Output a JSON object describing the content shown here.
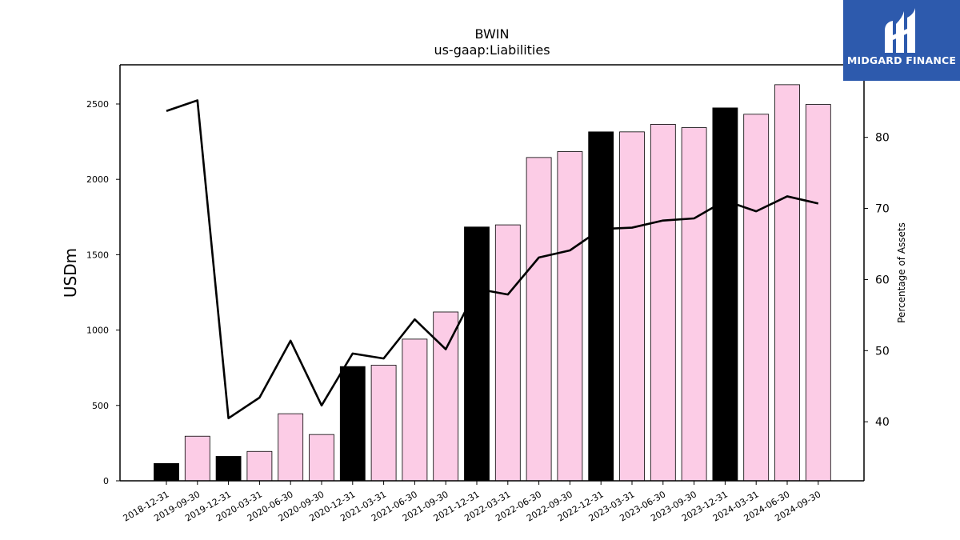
{
  "chart_data": {
    "type": "bar",
    "title": "BWIN",
    "subtitle": "us-gaap:Liabilities",
    "ylabel": "USDm",
    "y2label": "Percentage of Assets",
    "ylim": [
      0,
      2760
    ],
    "y2lim": [
      31.7,
      90.2
    ],
    "yticks": [
      0,
      500,
      1000,
      1500,
      2000,
      2500
    ],
    "y2ticks": [
      40,
      50,
      60,
      70,
      80
    ],
    "grid": false,
    "categories": [
      "2018-12-31",
      "2019-09-30",
      "2019-12-31",
      "2020-03-31",
      "2020-06-30",
      "2020-09-30",
      "2020-12-31",
      "2021-03-31",
      "2021-06-30",
      "2021-09-30",
      "2021-12-31",
      "2022-03-31",
      "2022-06-30",
      "2022-09-30",
      "2022-12-31",
      "2023-03-31",
      "2023-06-30",
      "2023-09-30",
      "2023-12-31",
      "2024-03-31",
      "2024-06-30",
      "2024-09-30"
    ],
    "series": [
      {
        "kind": "bar",
        "axis": "left",
        "values": [
          115,
          296,
          162,
          195,
          445,
          307,
          758,
          767,
          940,
          1120,
          1684,
          1698,
          2145,
          2184,
          2315,
          2315,
          2365,
          2343,
          2474,
          2432,
          2628,
          2497
        ],
        "colors": [
          "#000000",
          "#fccce6",
          "#000000",
          "#fccce6",
          "#fccce6",
          "#fccce6",
          "#000000",
          "#fccce6",
          "#fccce6",
          "#fccce6",
          "#000000",
          "#fccce6",
          "#fccce6",
          "#fccce6",
          "#000000",
          "#fccce6",
          "#fccce6",
          "#fccce6",
          "#000000",
          "#fccce6",
          "#fccce6",
          "#fccce6"
        ]
      },
      {
        "kind": "line",
        "axis": "right",
        "color": "#000000",
        "values": [
          83.7,
          85.2,
          40.5,
          43.4,
          51.4,
          42.3,
          49.6,
          48.9,
          54.4,
          50.2,
          58.7,
          57.9,
          63.1,
          64.1,
          67.1,
          67.3,
          68.3,
          68.6,
          71.1,
          69.6,
          71.7,
          70.7
        ]
      }
    ]
  },
  "logo": {
    "text": "MIDGARD FINANCE",
    "bg": "#2d5aad"
  }
}
